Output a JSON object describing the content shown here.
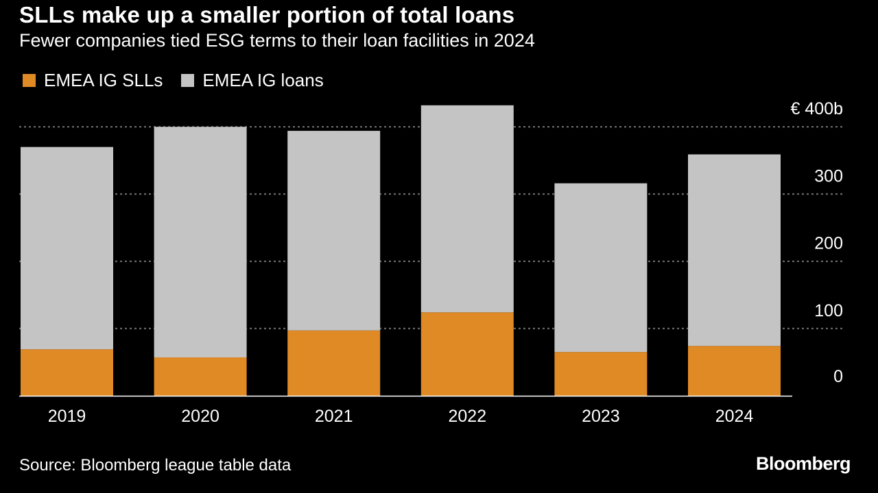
{
  "title": "SLLs make up a smaller portion of total loans",
  "subtitle": "Fewer companies tied ESG terms to their loan facilities in 2024",
  "legend": {
    "slls_label": "EMEA IG SLLs",
    "loans_label": "EMEA IG loans"
  },
  "source": "Source: Bloomberg league table data",
  "brand": "Bloomberg",
  "colors": {
    "slls": "#e08a26",
    "loans": "#c4c4c4",
    "background": "#000000",
    "grid": "#777777",
    "text": "#ffffff"
  },
  "chart_data": {
    "type": "bar",
    "stacked": true,
    "categories": [
      "2019",
      "2020",
      "2021",
      "2022",
      "2023",
      "2024"
    ],
    "series": [
      {
        "name": "EMEA IG SLLs",
        "values": [
          69,
          57,
          97,
          124,
          65,
          74
        ]
      },
      {
        "name": "EMEA IG loans",
        "values": [
          301,
          343,
          297,
          308,
          251,
          285
        ]
      }
    ],
    "y_ticks": [
      {
        "value": 0,
        "label": "0"
      },
      {
        "value": 100,
        "label": "100"
      },
      {
        "value": 200,
        "label": "200"
      },
      {
        "value": 300,
        "label": "300"
      },
      {
        "value": 400,
        "label": "€ 400b"
      }
    ],
    "ylim": [
      0,
      440
    ],
    "y_axis_side": "right",
    "grid": true,
    "legend_position": "top-left"
  }
}
